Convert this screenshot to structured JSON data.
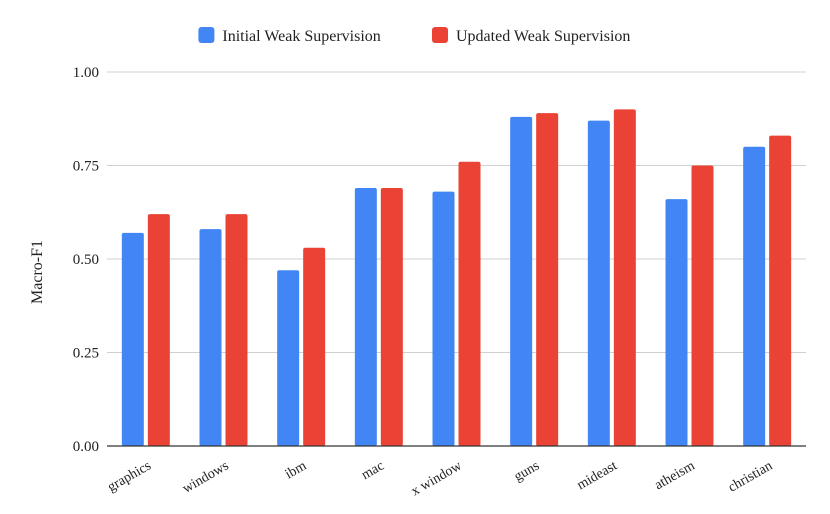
{
  "chart_data": {
    "type": "bar",
    "title": "",
    "xlabel": "",
    "ylabel": "Macro-F1",
    "ylim": [
      0,
      1.0
    ],
    "yticks": [
      "0.00",
      "0.25",
      "0.50",
      "0.75",
      "1.00"
    ],
    "grid": true,
    "legend_position": "top",
    "categories": [
      "graphics",
      "windows",
      "ibm",
      "mac",
      "x window",
      "guns",
      "mideast",
      "atheism",
      "christian"
    ],
    "series": [
      {
        "name": "Initial Weak Supervision",
        "color": "#4285f4",
        "values": [
          0.57,
          0.58,
          0.47,
          0.69,
          0.68,
          0.88,
          0.87,
          0.66,
          0.8
        ]
      },
      {
        "name": "Updated Weak Supervision",
        "color": "#ea4335",
        "values": [
          0.62,
          0.62,
          0.53,
          0.69,
          0.76,
          0.89,
          0.9,
          0.75,
          0.83
        ]
      }
    ]
  }
}
